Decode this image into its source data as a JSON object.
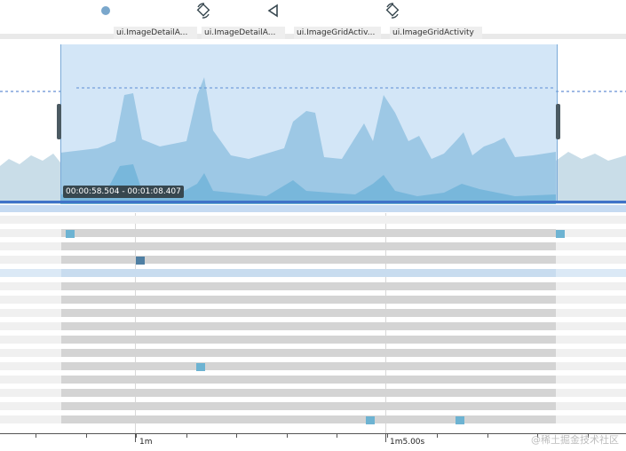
{
  "events": [
    {
      "icon": "dot-icon",
      "label": "ui.ImageDetailA..."
    },
    {
      "icon": "rotate-icon",
      "label": "ui.ImageDetailA..."
    },
    {
      "icon": "back-triangle-icon",
      "label": "ui.ImageGridActiv..."
    },
    {
      "icon": "rotate-icon",
      "label": "ui.ImageGridActivity"
    }
  ],
  "selection": {
    "range_label": "00:00:58.504 - 00:01:08.407"
  },
  "axis": {
    "ticks": [
      "1m",
      "1m5.00s"
    ]
  },
  "watermark": "@稀土掘金技术社区",
  "colors": {
    "selection": "#b9d6f2",
    "series_light": "#a9cfe2",
    "series_dark": "#6db3d2",
    "baseline": "#3f73c8"
  }
}
